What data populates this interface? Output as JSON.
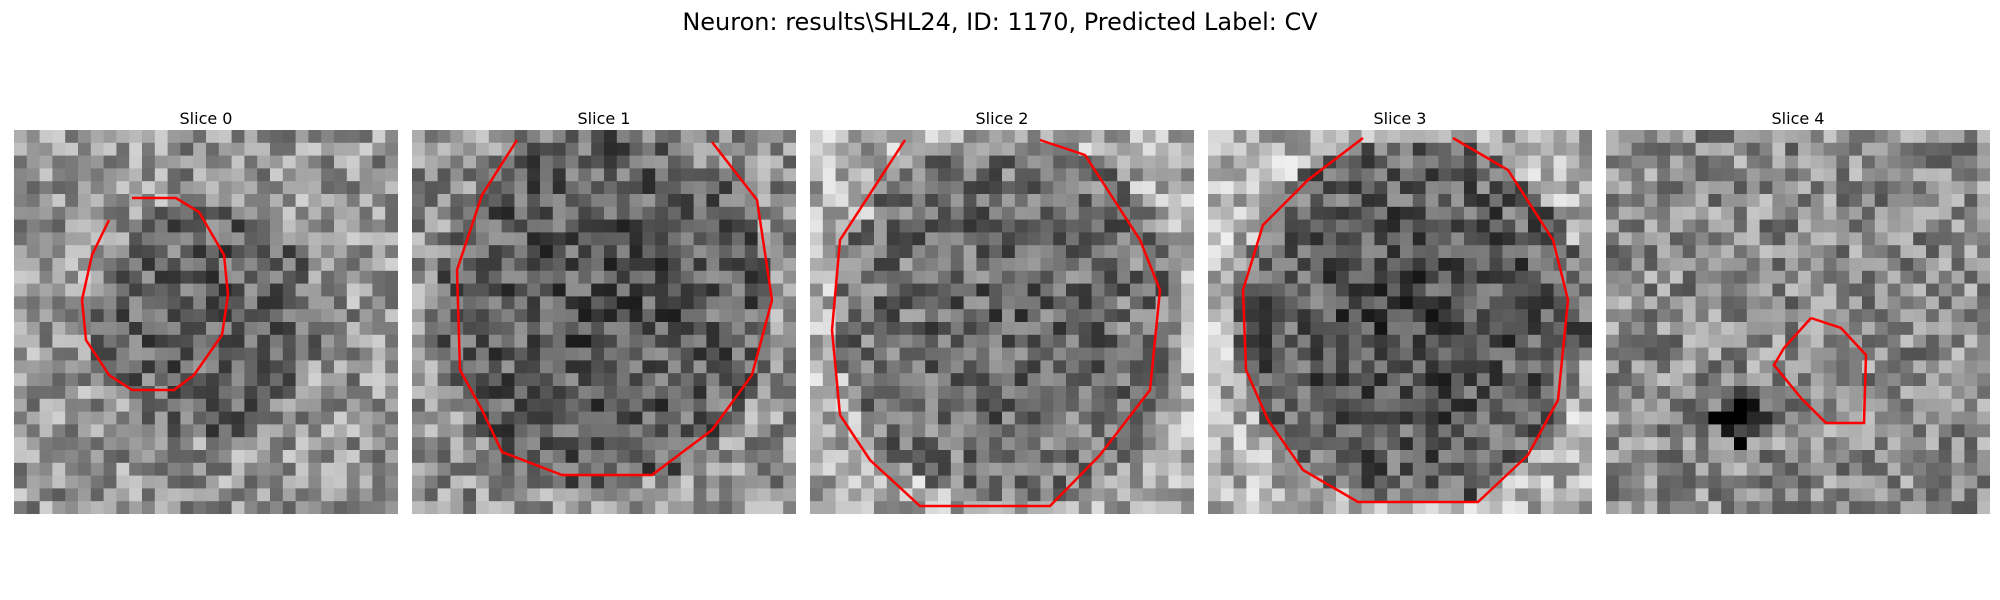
{
  "figure": {
    "title": "Neuron: results\\SHL24, ID: 1170, Predicted Label: CV"
  },
  "panels": [
    {
      "title": "Slice 0"
    },
    {
      "title": "Slice 1"
    },
    {
      "title": "Slice 2"
    },
    {
      "title": "Slice 3"
    },
    {
      "title": "Slice 4"
    }
  ],
  "colors": {
    "contour": "#ff0000",
    "colormap": "grayscale"
  }
}
